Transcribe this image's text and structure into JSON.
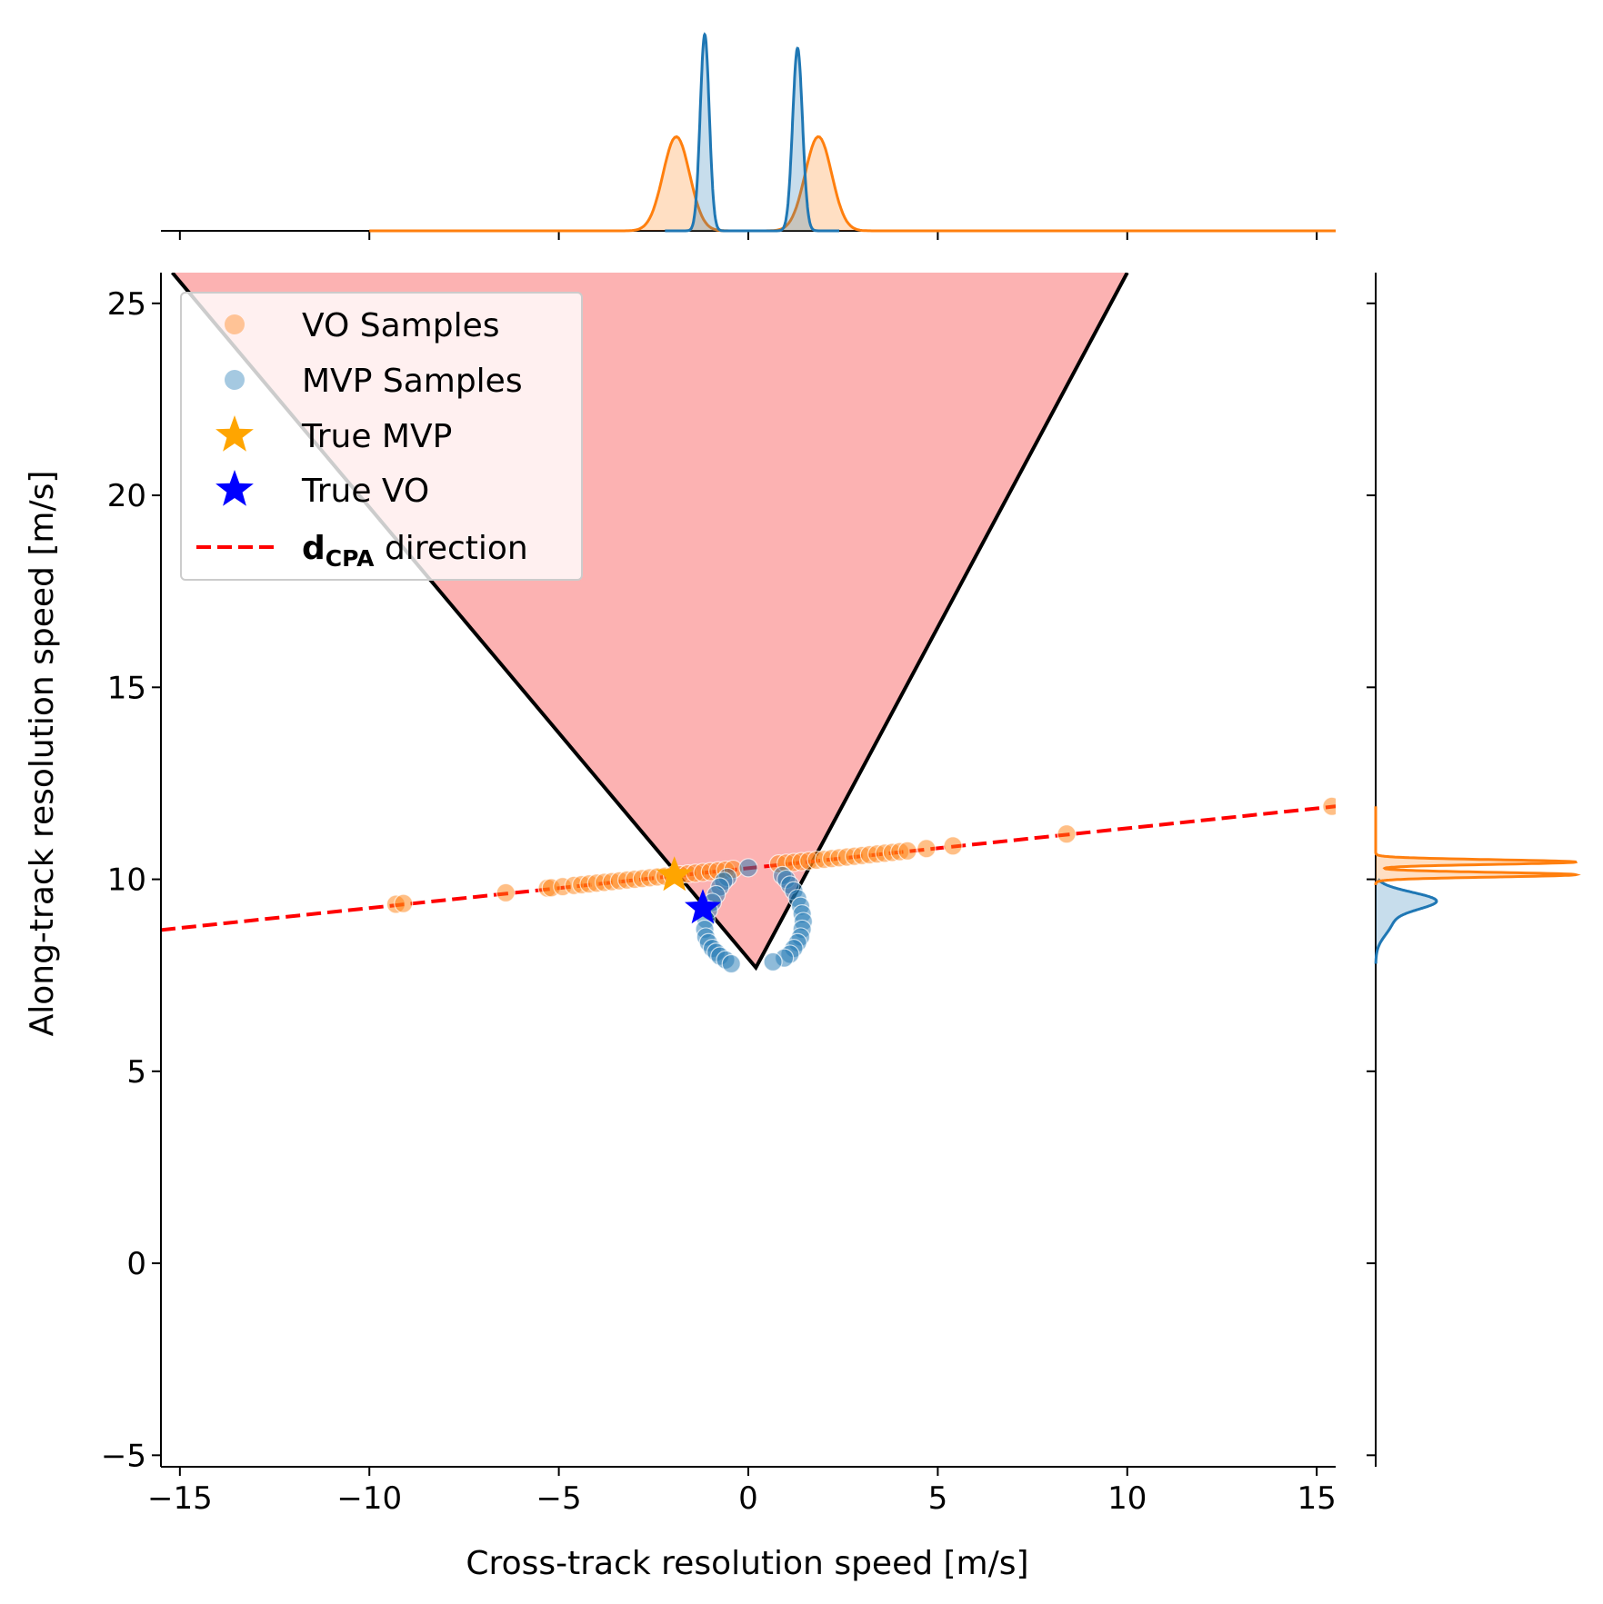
{
  "chart_data": {
    "type": "scatter",
    "xlabel": "Cross-track resolution speed [m/s]",
    "ylabel": "Along-track resolution speed [m/s]",
    "xlim": [
      -15.5,
      15.5
    ],
    "ylim": [
      -5.3,
      25.8
    ],
    "x_ticks": [
      -15,
      -10,
      -5,
      0,
      5,
      10,
      15
    ],
    "x_tick_labels": [
      "−15",
      "−10",
      "−5",
      "0",
      "5",
      "10",
      "15"
    ],
    "y_ticks": [
      -5,
      0,
      5,
      10,
      15,
      20,
      25
    ],
    "y_tick_labels": [
      "−5",
      "0",
      "5",
      "10",
      "15",
      "20",
      "25"
    ],
    "grid": false,
    "legend_position": "top-left",
    "legend": [
      {
        "label": "VO Samples",
        "marker": "circle",
        "color": "#ff7f0e"
      },
      {
        "label": "MVP Samples",
        "marker": "circle",
        "color": "#1f77b4"
      },
      {
        "label": "True MVP",
        "marker": "star",
        "color": "#ffa500"
      },
      {
        "label": "True VO",
        "marker": "star",
        "color": "#0000ff"
      },
      {
        "label_main": "d",
        "label_sub": "CPA",
        "label_rest": " direction",
        "marker": "dashed-line",
        "color": "#ff0000"
      }
    ],
    "vo_cone": {
      "fill_color": "#fcb2b2",
      "edge_color": "#000000",
      "apex": [
        0.2,
        7.7
      ],
      "left_top": [
        -15.2,
        25.8
      ],
      "right_top": [
        10.0,
        25.8
      ]
    },
    "dcpa_line": {
      "color": "#ff0000",
      "points": [
        [
          -15.5,
          8.68
        ],
        [
          15.5,
          11.9
        ]
      ]
    },
    "series": [
      {
        "name": "VO Samples",
        "color": "#ff7f0e",
        "x": [
          -9.3,
          -9.1,
          -6.4,
          -5.3,
          -5.2,
          -4.9,
          -4.6,
          -4.4,
          -4.2,
          -4.0,
          -3.8,
          -3.6,
          -3.4,
          -3.2,
          -3.0,
          -2.8,
          -2.6,
          -2.4,
          -2.2,
          -2.0,
          -1.8,
          -1.6,
          -1.4,
          -1.2,
          -1.0,
          -0.8,
          -0.6,
          -0.4,
          0.8,
          1.0,
          1.2,
          1.4,
          1.6,
          1.8,
          2.0,
          2.2,
          2.4,
          2.6,
          2.8,
          3.0,
          3.2,
          3.4,
          3.6,
          3.8,
          4.0,
          4.2,
          4.7,
          5.4,
          8.4,
          15.4
        ],
        "y": [
          9.35,
          9.37,
          9.65,
          9.77,
          9.78,
          9.81,
          9.84,
          9.86,
          9.88,
          9.9,
          9.92,
          9.94,
          9.96,
          9.98,
          10.0,
          10.02,
          10.04,
          10.06,
          10.08,
          10.1,
          10.12,
          10.14,
          10.16,
          10.18,
          10.2,
          10.22,
          10.24,
          10.26,
          10.4,
          10.42,
          10.44,
          10.46,
          10.48,
          10.5,
          10.52,
          10.54,
          10.56,
          10.58,
          10.6,
          10.62,
          10.64,
          10.66,
          10.68,
          10.7,
          10.72,
          10.74,
          10.8,
          10.87,
          11.18,
          11.9
        ]
      },
      {
        "name": "MVP Samples",
        "color": "#1f77b4",
        "x": [
          0.0,
          -0.55,
          -0.65,
          -0.75,
          -0.85,
          -0.95,
          -1.05,
          -1.12,
          -1.15,
          -1.12,
          -1.05,
          -0.95,
          -0.85,
          -0.75,
          -0.6,
          -0.45,
          0.9,
          1.0,
          1.1,
          1.2,
          1.3,
          1.38,
          1.42,
          1.45,
          1.42,
          1.38,
          1.3,
          1.2,
          1.1,
          0.95,
          0.65
        ],
        "y": [
          10.3,
          10.05,
          9.95,
          9.8,
          9.6,
          9.4,
          9.2,
          8.95,
          8.7,
          8.5,
          8.35,
          8.2,
          8.1,
          8.0,
          7.9,
          7.8,
          10.1,
          10.0,
          9.85,
          9.7,
          9.5,
          9.3,
          9.1,
          8.9,
          8.7,
          8.5,
          8.35,
          8.2,
          8.05,
          7.95,
          7.85
        ]
      }
    ],
    "true_mvp": {
      "x": -1.95,
      "y": 10.1,
      "color": "#ffa500"
    },
    "true_vo": {
      "x": -1.2,
      "y": 9.25,
      "color": "#0000ff"
    },
    "marginal_x": {
      "orange_peaks": [
        {
          "center": -1.9,
          "sigma": 0.35,
          "height": 0.48
        },
        {
          "center": 1.85,
          "sigma": 0.35,
          "height": 0.48
        }
      ],
      "blue_peaks": [
        {
          "center": -1.15,
          "sigma": 0.12,
          "height": 1.0
        },
        {
          "center": 1.3,
          "sigma": 0.13,
          "height": 0.93
        }
      ]
    },
    "marginal_y": {
      "orange_peaks": [
        {
          "center": 10.45,
          "sigma": 0.06,
          "height": 1.0
        },
        {
          "center": 10.12,
          "sigma": 0.06,
          "height": 1.0
        }
      ],
      "blue_peaks": [
        {
          "center": 9.45,
          "sigma": 0.22,
          "height": 0.28
        },
        {
          "center": 8.9,
          "sigma": 0.35,
          "height": 0.08
        }
      ]
    }
  }
}
